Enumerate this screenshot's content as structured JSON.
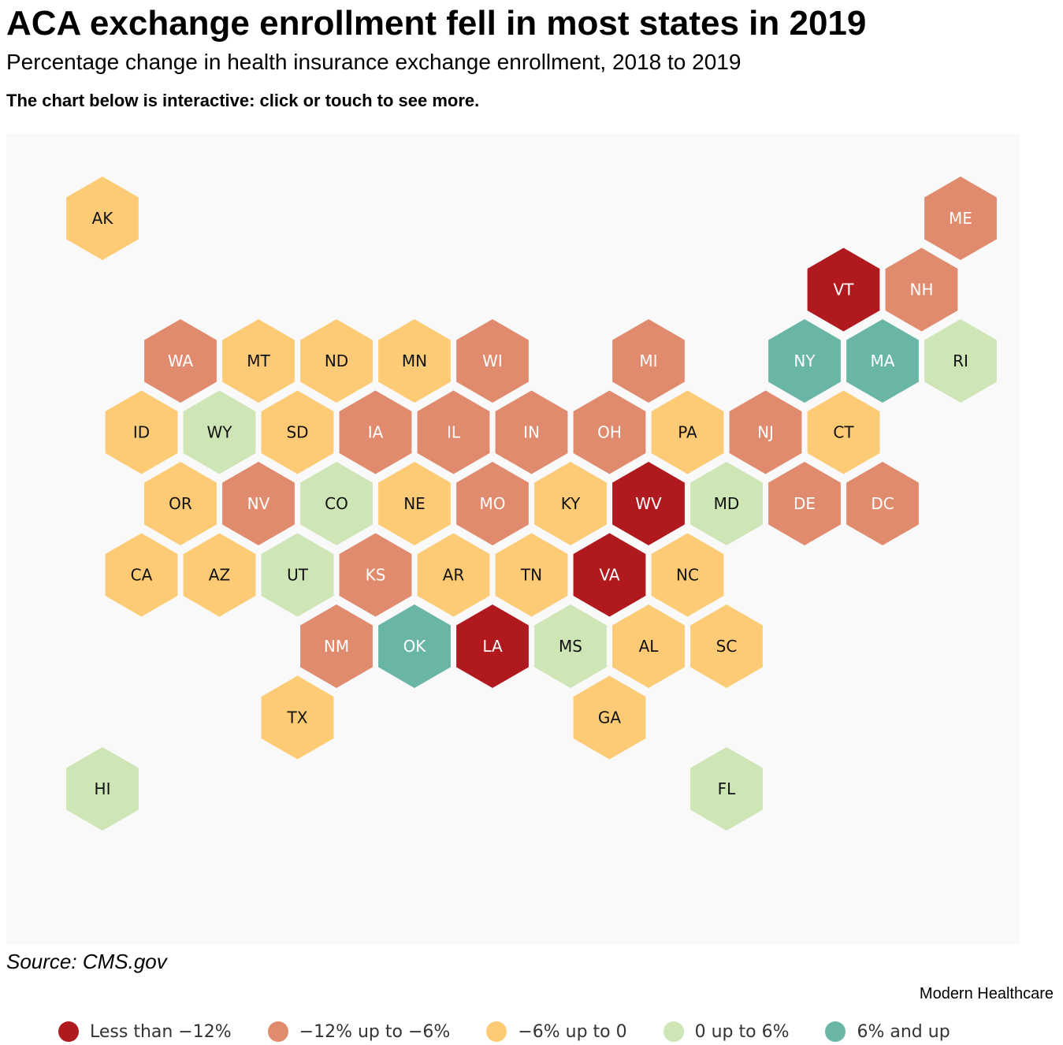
{
  "title": "ACA exchange enrollment fell in most states in 2019",
  "subtitle": "Percentage change in health insurance exchange enrollment, 2018 to 2019",
  "note": "The chart below is interactive: click or touch to see more.",
  "source": "Source: CMS.gov",
  "credit": "Modern Healthcare",
  "legend": [
    {
      "label": "Less than −12%",
      "color": "#b0191e"
    },
    {
      "label": "−12% up to −6%",
      "color": "#e08a6e"
    },
    {
      "label": "−6% up to 0",
      "color": "#fdcb75"
    },
    {
      "label": "0 up to 6%",
      "color": "#cee5b5"
    },
    {
      "label": "6% and up",
      "color": "#69b5a6"
    }
  ],
  "chart_data": {
    "type": "hex-tile-map",
    "categories": [
      "Less than −12%",
      "−12% up to −6%",
      "−6% up to 0",
      "0 up to 6%",
      "6% and up"
    ],
    "states": [
      {
        "abbr": "AK",
        "category": 2,
        "row": 0,
        "col": 0
      },
      {
        "abbr": "ME",
        "category": 1,
        "row": 0,
        "col": 11
      },
      {
        "abbr": "VT",
        "category": 0,
        "row": 1,
        "col": 10
      },
      {
        "abbr": "NH",
        "category": 1,
        "row": 1,
        "col": 11
      },
      {
        "abbr": "WA",
        "category": 1,
        "row": 2,
        "col": 1
      },
      {
        "abbr": "MT",
        "category": 2,
        "row": 2,
        "col": 2
      },
      {
        "abbr": "ND",
        "category": 2,
        "row": 2,
        "col": 3
      },
      {
        "abbr": "MN",
        "category": 2,
        "row": 2,
        "col": 4
      },
      {
        "abbr": "WI",
        "category": 1,
        "row": 2,
        "col": 5
      },
      {
        "abbr": "MI",
        "category": 1,
        "row": 2,
        "col": 7
      },
      {
        "abbr": "NY",
        "category": 4,
        "row": 2,
        "col": 9
      },
      {
        "abbr": "MA",
        "category": 4,
        "row": 2,
        "col": 10
      },
      {
        "abbr": "RI",
        "category": 3,
        "row": 2,
        "col": 11
      },
      {
        "abbr": "ID",
        "category": 2,
        "row": 3,
        "col": 1
      },
      {
        "abbr": "WY",
        "category": 3,
        "row": 3,
        "col": 2
      },
      {
        "abbr": "SD",
        "category": 2,
        "row": 3,
        "col": 3
      },
      {
        "abbr": "IA",
        "category": 1,
        "row": 3,
        "col": 4
      },
      {
        "abbr": "IL",
        "category": 1,
        "row": 3,
        "col": 5
      },
      {
        "abbr": "IN",
        "category": 1,
        "row": 3,
        "col": 6
      },
      {
        "abbr": "OH",
        "category": 1,
        "row": 3,
        "col": 7
      },
      {
        "abbr": "PA",
        "category": 2,
        "row": 3,
        "col": 8
      },
      {
        "abbr": "NJ",
        "category": 1,
        "row": 3,
        "col": 9
      },
      {
        "abbr": "CT",
        "category": 2,
        "row": 3,
        "col": 10
      },
      {
        "abbr": "OR",
        "category": 2,
        "row": 4,
        "col": 1
      },
      {
        "abbr": "NV",
        "category": 1,
        "row": 4,
        "col": 2
      },
      {
        "abbr": "CO",
        "category": 3,
        "row": 4,
        "col": 3
      },
      {
        "abbr": "NE",
        "category": 2,
        "row": 4,
        "col": 4
      },
      {
        "abbr": "MO",
        "category": 1,
        "row": 4,
        "col": 5
      },
      {
        "abbr": "KY",
        "category": 2,
        "row": 4,
        "col": 6
      },
      {
        "abbr": "WV",
        "category": 0,
        "row": 4,
        "col": 7
      },
      {
        "abbr": "MD",
        "category": 3,
        "row": 4,
        "col": 8
      },
      {
        "abbr": "DE",
        "category": 1,
        "row": 4,
        "col": 9
      },
      {
        "abbr": "DC",
        "category": 1,
        "row": 4,
        "col": 10
      },
      {
        "abbr": "CA",
        "category": 2,
        "row": 5,
        "col": 1
      },
      {
        "abbr": "AZ",
        "category": 2,
        "row": 5,
        "col": 2
      },
      {
        "abbr": "UT",
        "category": 3,
        "row": 5,
        "col": 3
      },
      {
        "abbr": "KS",
        "category": 1,
        "row": 5,
        "col": 4
      },
      {
        "abbr": "AR",
        "category": 2,
        "row": 5,
        "col": 5
      },
      {
        "abbr": "TN",
        "category": 2,
        "row": 5,
        "col": 6
      },
      {
        "abbr": "VA",
        "category": 0,
        "row": 5,
        "col": 7
      },
      {
        "abbr": "NC",
        "category": 2,
        "row": 5,
        "col": 8
      },
      {
        "abbr": "NM",
        "category": 1,
        "row": 6,
        "col": 3
      },
      {
        "abbr": "OK",
        "category": 4,
        "row": 6,
        "col": 4
      },
      {
        "abbr": "LA",
        "category": 0,
        "row": 6,
        "col": 5
      },
      {
        "abbr": "MS",
        "category": 3,
        "row": 6,
        "col": 6
      },
      {
        "abbr": "AL",
        "category": 2,
        "row": 6,
        "col": 7
      },
      {
        "abbr": "SC",
        "category": 2,
        "row": 6,
        "col": 8
      },
      {
        "abbr": "TX",
        "category": 2,
        "row": 7,
        "col": 3
      },
      {
        "abbr": "GA",
        "category": 2,
        "row": 7,
        "col": 7
      },
      {
        "abbr": "HI",
        "category": 3,
        "row": 8,
        "col": 0
      },
      {
        "abbr": "FL",
        "category": 3,
        "row": 8,
        "col": 8
      }
    ]
  }
}
